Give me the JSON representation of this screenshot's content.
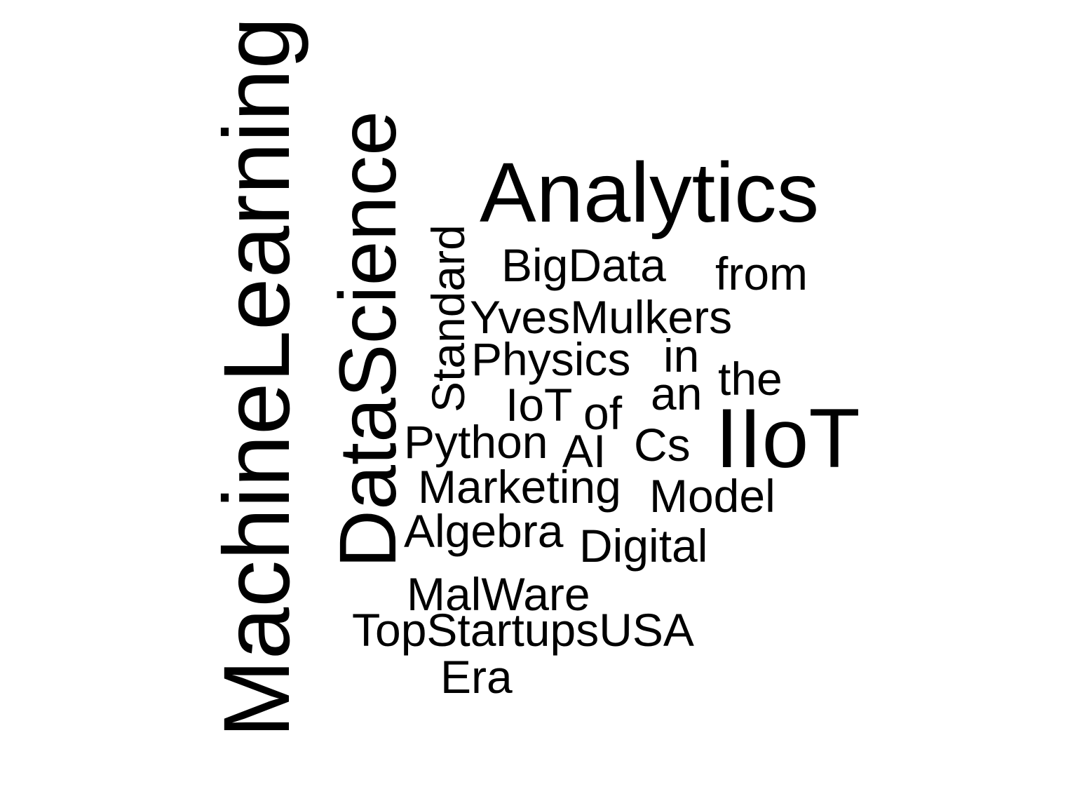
{
  "word_cloud": {
    "text_color": "#000000",
    "background_color": "#ffffff",
    "words": {
      "machine_learning": "MachineLearning",
      "data_science": "DataScience",
      "standard": "Standard",
      "analytics": "Analytics",
      "bigdata": "BigData",
      "from": "from",
      "yves_mulkers": "YvesMulkers",
      "physics": "Physics",
      "in": "in",
      "the": "the",
      "an": "an",
      "iot": "IoT",
      "of": "of",
      "iiot": "IIoT",
      "python": "Python",
      "ai": "AI",
      "cs": "Cs",
      "marketing": "Marketing",
      "model": "Model",
      "algebra": "Algebra",
      "digital": "Digital",
      "malware": "MalWare",
      "top_startups_usa": "TopStartupsUSA",
      "era": "Era"
    }
  }
}
